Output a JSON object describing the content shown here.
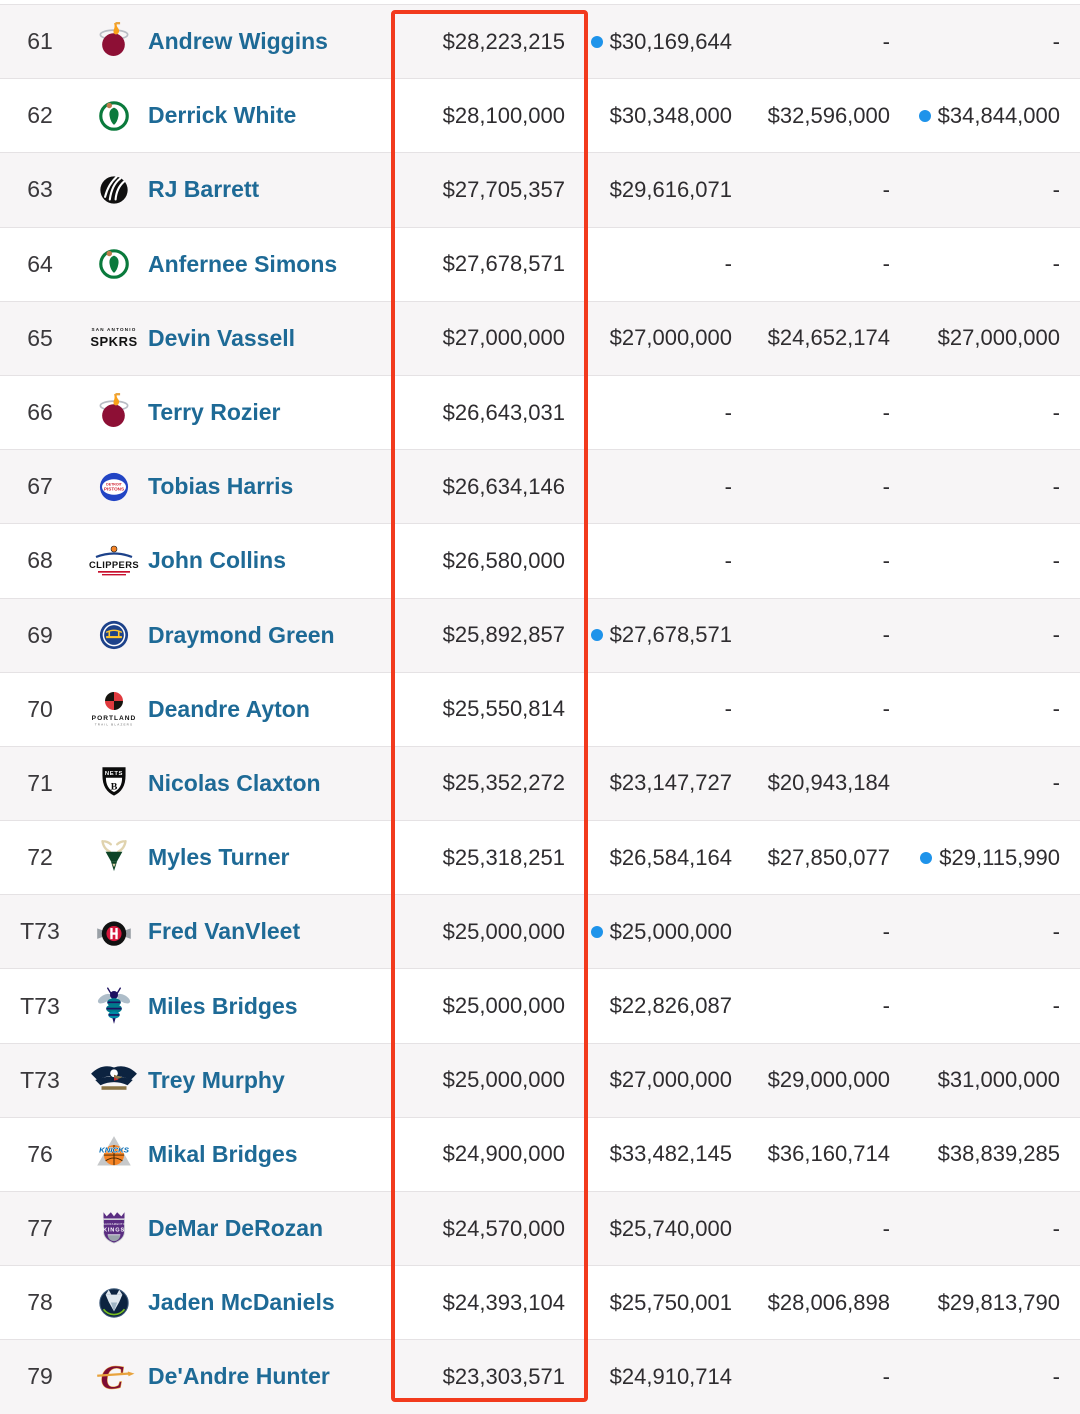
{
  "colors": {
    "accent_red": "#f23a1d",
    "option_dot_blue": "#1e93ea",
    "player_name_blue": "#1e6a96",
    "row_stripe": "#f7f5f6",
    "row_border": "#e5e2e4",
    "rank_text": "#3a383b",
    "salary_text": "#2e2c2f"
  },
  "table": {
    "highlight": {
      "note": "red box around first salary column"
    },
    "rows": [
      {
        "rank": "61",
        "team": "Miami Heat",
        "team_logo": "heat-logo",
        "team_id": "heat",
        "player": "Andrew Wiggins",
        "salaries": [
          {
            "text": "$28,223,215",
            "dot": false
          },
          {
            "text": "$30,169,644",
            "dot": true
          },
          {
            "text": "-",
            "dot": false
          },
          {
            "text": "-",
            "dot": false
          }
        ]
      },
      {
        "rank": "62",
        "team": "Boston Celtics",
        "team_logo": "celtics-logo",
        "team_id": "celtics",
        "player": "Derrick White",
        "salaries": [
          {
            "text": "$28,100,000",
            "dot": false
          },
          {
            "text": "$30,348,000",
            "dot": false
          },
          {
            "text": "$32,596,000",
            "dot": false
          },
          {
            "text": "$34,844,000",
            "dot": true
          }
        ]
      },
      {
        "rank": "63",
        "team": "Toronto Raptors",
        "team_logo": "raptors-logo",
        "team_id": "raptors",
        "player": "RJ Barrett",
        "salaries": [
          {
            "text": "$27,705,357",
            "dot": false
          },
          {
            "text": "$29,616,071",
            "dot": false
          },
          {
            "text": "-",
            "dot": false
          },
          {
            "text": "-",
            "dot": false
          }
        ]
      },
      {
        "rank": "64",
        "team": "Boston Celtics",
        "team_logo": "celtics-logo",
        "team_id": "celtics",
        "player": "Anfernee Simons",
        "salaries": [
          {
            "text": "$27,678,571",
            "dot": false
          },
          {
            "text": "-",
            "dot": false
          },
          {
            "text": "-",
            "dot": false
          },
          {
            "text": "-",
            "dot": false
          }
        ]
      },
      {
        "rank": "65",
        "team": "San Antonio Spurs",
        "team_logo": "spurs-logo",
        "team_id": "spurs",
        "player": "Devin Vassell",
        "salaries": [
          {
            "text": "$27,000,000",
            "dot": false
          },
          {
            "text": "$27,000,000",
            "dot": false
          },
          {
            "text": "$24,652,174",
            "dot": false
          },
          {
            "text": "$27,000,000",
            "dot": false
          }
        ]
      },
      {
        "rank": "66",
        "team": "Miami Heat",
        "team_logo": "heat-logo",
        "team_id": "heat",
        "player": "Terry Rozier",
        "salaries": [
          {
            "text": "$26,643,031",
            "dot": false
          },
          {
            "text": "-",
            "dot": false
          },
          {
            "text": "-",
            "dot": false
          },
          {
            "text": "-",
            "dot": false
          }
        ]
      },
      {
        "rank": "67",
        "team": "Detroit Pistons",
        "team_logo": "pistons-logo",
        "team_id": "pistons",
        "player": "Tobias Harris",
        "salaries": [
          {
            "text": "$26,634,146",
            "dot": false
          },
          {
            "text": "-",
            "dot": false
          },
          {
            "text": "-",
            "dot": false
          },
          {
            "text": "-",
            "dot": false
          }
        ]
      },
      {
        "rank": "68",
        "team": "LA Clippers",
        "team_logo": "clippers-logo",
        "team_id": "clippers",
        "player": "John Collins",
        "salaries": [
          {
            "text": "$26,580,000",
            "dot": false
          },
          {
            "text": "-",
            "dot": false
          },
          {
            "text": "-",
            "dot": false
          },
          {
            "text": "-",
            "dot": false
          }
        ]
      },
      {
        "rank": "69",
        "team": "Golden State Warriors",
        "team_logo": "warriors-logo",
        "team_id": "warriors",
        "player": "Draymond Green",
        "salaries": [
          {
            "text": "$25,892,857",
            "dot": false
          },
          {
            "text": "$27,678,571",
            "dot": true
          },
          {
            "text": "-",
            "dot": false
          },
          {
            "text": "-",
            "dot": false
          }
        ]
      },
      {
        "rank": "70",
        "team": "Portland Trail Blazers",
        "team_logo": "blazers-logo",
        "team_id": "blazers",
        "player": "Deandre Ayton",
        "salaries": [
          {
            "text": "$25,550,814",
            "dot": false
          },
          {
            "text": "-",
            "dot": false
          },
          {
            "text": "-",
            "dot": false
          },
          {
            "text": "-",
            "dot": false
          }
        ]
      },
      {
        "rank": "71",
        "team": "Brooklyn Nets",
        "team_logo": "nets-logo",
        "team_id": "nets",
        "player": "Nicolas Claxton",
        "salaries": [
          {
            "text": "$25,352,272",
            "dot": false
          },
          {
            "text": "$23,147,727",
            "dot": false
          },
          {
            "text": "$20,943,184",
            "dot": false
          },
          {
            "text": "-",
            "dot": false
          }
        ]
      },
      {
        "rank": "72",
        "team": "Milwaukee Bucks",
        "team_logo": "bucks-logo",
        "team_id": "bucks",
        "player": "Myles Turner",
        "salaries": [
          {
            "text": "$25,318,251",
            "dot": false
          },
          {
            "text": "$26,584,164",
            "dot": false
          },
          {
            "text": "$27,850,077",
            "dot": false
          },
          {
            "text": "$29,115,990",
            "dot": true
          }
        ]
      },
      {
        "rank": "T73",
        "team": "Houston Rockets",
        "team_logo": "rockets-logo",
        "team_id": "rockets",
        "player": "Fred VanVleet",
        "salaries": [
          {
            "text": "$25,000,000",
            "dot": false
          },
          {
            "text": "$25,000,000",
            "dot": true
          },
          {
            "text": "-",
            "dot": false
          },
          {
            "text": "-",
            "dot": false
          }
        ]
      },
      {
        "rank": "T73",
        "team": "Charlotte Hornets",
        "team_logo": "hornets-logo",
        "team_id": "hornets",
        "player": "Miles Bridges",
        "salaries": [
          {
            "text": "$25,000,000",
            "dot": false
          },
          {
            "text": "$22,826,087",
            "dot": false
          },
          {
            "text": "-",
            "dot": false
          },
          {
            "text": "-",
            "dot": false
          }
        ]
      },
      {
        "rank": "T73",
        "team": "New Orleans Pelicans",
        "team_logo": "pelicans-logo",
        "team_id": "pelicans",
        "player": "Trey Murphy",
        "salaries": [
          {
            "text": "$25,000,000",
            "dot": false
          },
          {
            "text": "$27,000,000",
            "dot": false
          },
          {
            "text": "$29,000,000",
            "dot": false
          },
          {
            "text": "$31,000,000",
            "dot": false
          }
        ]
      },
      {
        "rank": "76",
        "team": "New York Knicks",
        "team_logo": "knicks-logo",
        "team_id": "knicks",
        "player": "Mikal Bridges",
        "salaries": [
          {
            "text": "$24,900,000",
            "dot": false
          },
          {
            "text": "$33,482,145",
            "dot": false
          },
          {
            "text": "$36,160,714",
            "dot": false
          },
          {
            "text": "$38,839,285",
            "dot": false
          }
        ]
      },
      {
        "rank": "77",
        "team": "Sacramento Kings",
        "team_logo": "kings-logo",
        "team_id": "kings",
        "player": "DeMar DeRozan",
        "salaries": [
          {
            "text": "$24,570,000",
            "dot": false
          },
          {
            "text": "$25,740,000",
            "dot": false
          },
          {
            "text": "-",
            "dot": false
          },
          {
            "text": "-",
            "dot": false
          }
        ]
      },
      {
        "rank": "78",
        "team": "Minnesota Timberwolves",
        "team_logo": "timberwolves-logo",
        "team_id": "timberwolves",
        "player": "Jaden McDaniels",
        "salaries": [
          {
            "text": "$24,393,104",
            "dot": false
          },
          {
            "text": "$25,750,001",
            "dot": false
          },
          {
            "text": "$28,006,898",
            "dot": false
          },
          {
            "text": "$29,813,790",
            "dot": false
          }
        ]
      },
      {
        "rank": "79",
        "team": "Cleveland Cavaliers",
        "team_logo": "cavaliers-logo",
        "team_id": "cavaliers",
        "player": "De'Andre Hunter",
        "salaries": [
          {
            "text": "$23,303,571",
            "dot": false
          },
          {
            "text": "$24,910,714",
            "dot": false
          },
          {
            "text": "-",
            "dot": false
          },
          {
            "text": "-",
            "dot": false
          }
        ]
      }
    ]
  }
}
